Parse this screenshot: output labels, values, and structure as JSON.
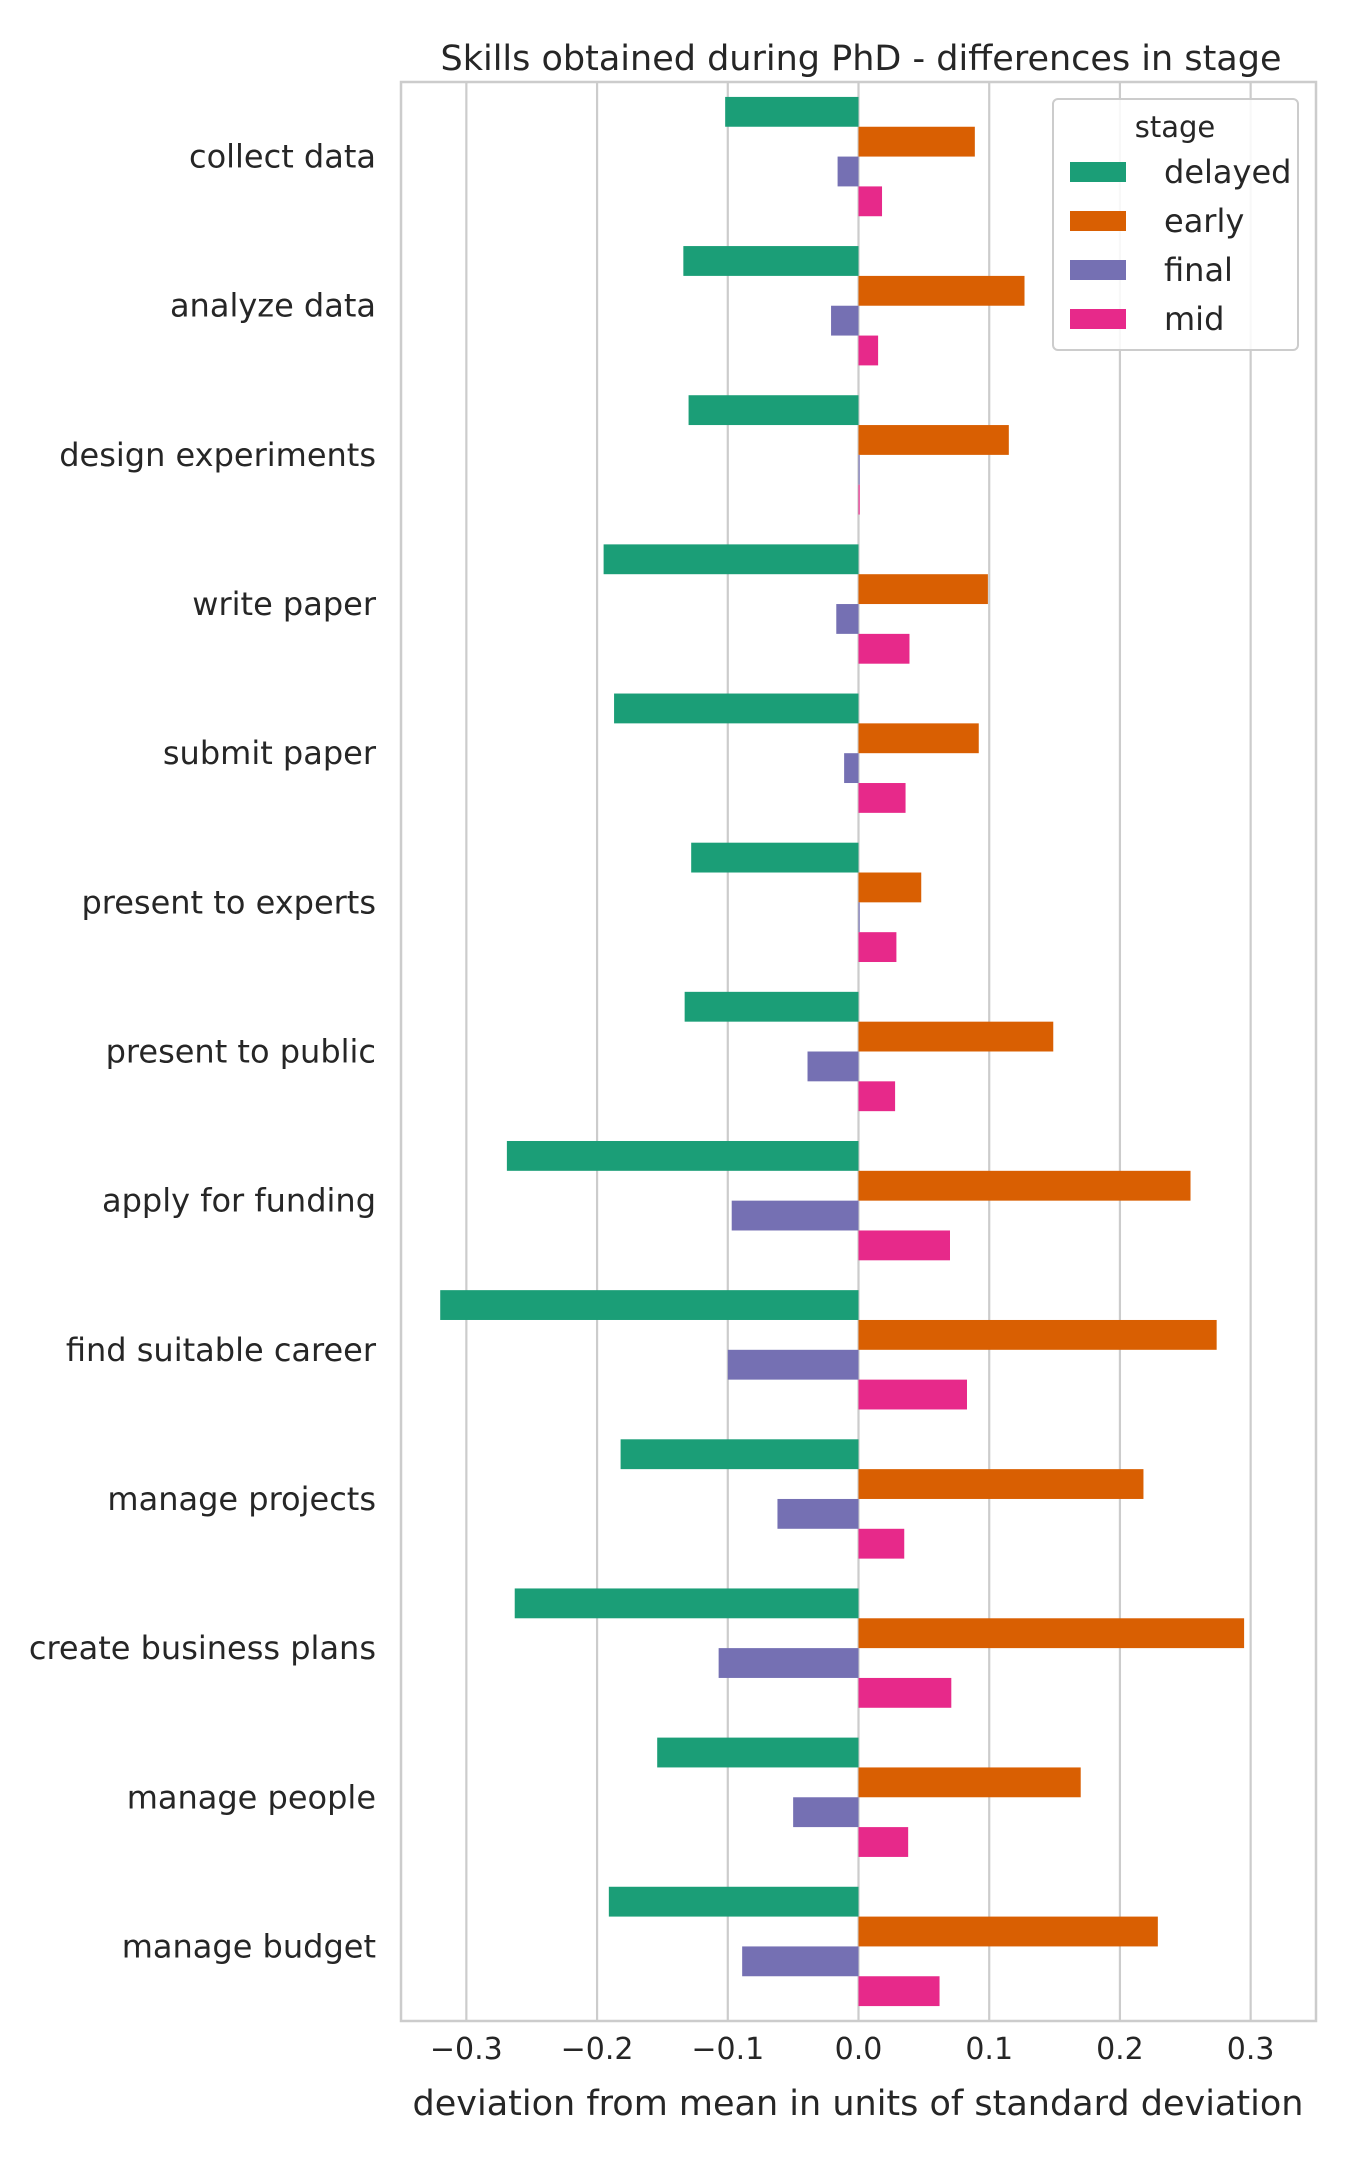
{
  "chart_data": {
    "type": "bar",
    "orientation": "horizontal",
    "title": "Skills obtained during PhD - differences in stage",
    "xlabel": "deviation from mean in units of standard deviation",
    "ylabel": "",
    "xlim": [
      -0.35,
      0.35
    ],
    "xticks": [
      -0.3,
      -0.2,
      -0.1,
      0.0,
      0.1,
      0.2,
      0.3
    ],
    "xtick_labels": [
      "−0.3",
      "−0.2",
      "−0.1",
      "0.0",
      "0.1",
      "0.2",
      "0.3"
    ],
    "grid": "vertical",
    "legend": {
      "title": "stage",
      "position": "top-right"
    },
    "categories": [
      "collect data",
      "analyze data",
      "design experiments",
      "write paper",
      "submit paper",
      "present to experts",
      "present to public",
      "apply for funding",
      "find suitable career",
      "manage projects",
      "create business plans",
      "manage people",
      "manage budget"
    ],
    "series": [
      {
        "name": "delayed",
        "color": "#1b9e77",
        "values": [
          -0.102,
          -0.134,
          -0.13,
          -0.195,
          -0.187,
          -0.128,
          -0.133,
          -0.269,
          -0.32,
          -0.182,
          -0.263,
          -0.154,
          -0.191
        ]
      },
      {
        "name": "early",
        "color": "#d95f02",
        "values": [
          0.089,
          0.127,
          0.115,
          0.099,
          0.092,
          0.048,
          0.149,
          0.254,
          0.274,
          0.218,
          0.295,
          0.17,
          0.229
        ]
      },
      {
        "name": "final",
        "color": "#7570b3",
        "values": [
          -0.016,
          -0.021,
          0.0,
          -0.017,
          -0.011,
          0.0,
          -0.039,
          -0.097,
          -0.1,
          -0.062,
          -0.107,
          -0.05,
          -0.089
        ]
      },
      {
        "name": "mid",
        "color": "#e7298a",
        "values": [
          0.018,
          0.015,
          0.0,
          0.039,
          0.036,
          0.029,
          0.028,
          0.07,
          0.083,
          0.035,
          0.071,
          0.038,
          0.062
        ]
      }
    ]
  }
}
